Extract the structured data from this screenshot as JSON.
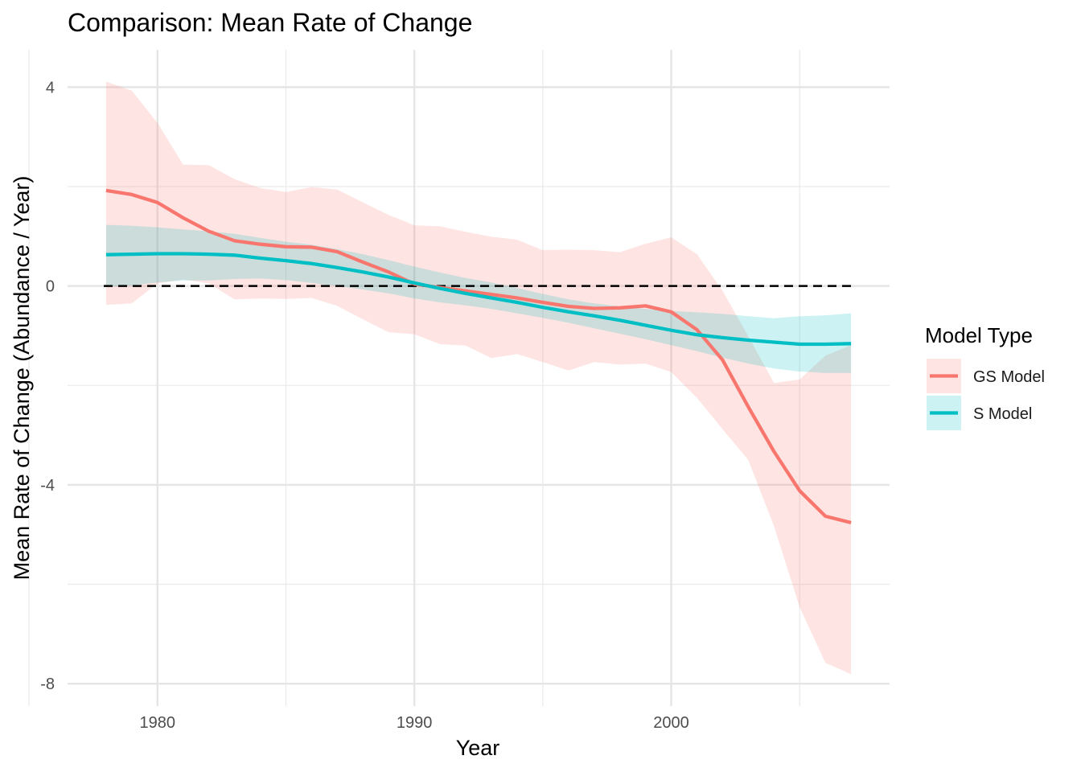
{
  "chart_data": {
    "type": "line",
    "title": "Comparison: Mean Rate of Change",
    "xlabel": "Year",
    "ylabel": "Mean Rate of Change (Abundance / Year)",
    "xlim": [
      1976.5,
      2008.5
    ],
    "ylim": [
      -8.45,
      4.75
    ],
    "x_ticks": [
      1980,
      1990,
      2000
    ],
    "y_ticks": [
      -8,
      -4,
      0,
      4
    ],
    "y_tick_labels": [
      "-8",
      "-4",
      "0",
      "4"
    ],
    "grid": true,
    "reference_line": {
      "y": 0,
      "style": "dashed"
    },
    "legend": {
      "title": "Model Type",
      "position": "right"
    },
    "x": [
      1978,
      1979,
      1980,
      1981,
      1982,
      1983,
      1984,
      1985,
      1986,
      1987,
      1988,
      1989,
      1990,
      1991,
      1992,
      1993,
      1994,
      1995,
      1996,
      1997,
      1998,
      1999,
      2000,
      2001,
      2002,
      2003,
      2004,
      2005,
      2006,
      2007
    ],
    "series": [
      {
        "name": "GS Model",
        "color": "#F8766D",
        "values": [
          1.92,
          1.84,
          1.68,
          1.37,
          1.1,
          0.91,
          0.84,
          0.79,
          0.78,
          0.69,
          0.48,
          0.28,
          0.04,
          -0.03,
          -0.1,
          -0.17,
          -0.24,
          -0.33,
          -0.41,
          -0.45,
          -0.44,
          -0.4,
          -0.52,
          -0.88,
          -1.49,
          -2.43,
          -3.33,
          -4.12,
          -4.63,
          -4.76
        ],
        "lower": [
          -0.38,
          -0.35,
          0.05,
          0.13,
          0.05,
          -0.27,
          -0.25,
          -0.26,
          -0.24,
          -0.4,
          -0.67,
          -0.93,
          -0.97,
          -1.17,
          -1.2,
          -1.45,
          -1.37,
          -1.53,
          -1.7,
          -1.53,
          -1.58,
          -1.56,
          -1.73,
          -2.25,
          -2.88,
          -3.5,
          -4.83,
          -6.46,
          -7.58,
          -7.81
        ],
        "upper": [
          4.11,
          3.93,
          3.28,
          2.44,
          2.43,
          2.15,
          1.97,
          1.89,
          1.99,
          1.94,
          1.68,
          1.43,
          1.22,
          1.2,
          1.09,
          0.99,
          0.93,
          0.72,
          0.73,
          0.72,
          0.68,
          0.85,
          0.98,
          0.64,
          -0.1,
          -1.01,
          -1.95,
          -1.88,
          -1.4,
          -1.19
        ]
      },
      {
        "name": "S Model",
        "color": "#00BFC4",
        "values": [
          0.63,
          0.64,
          0.65,
          0.65,
          0.64,
          0.62,
          0.56,
          0.51,
          0.45,
          0.37,
          0.28,
          0.18,
          0.06,
          -0.05,
          -0.15,
          -0.24,
          -0.33,
          -0.43,
          -0.52,
          -0.6,
          -0.69,
          -0.79,
          -0.89,
          -0.98,
          -1.04,
          -1.09,
          -1.13,
          -1.17,
          -1.17,
          -1.16
        ],
        "lower": [
          -0.02,
          0.01,
          0.07,
          0.11,
          0.11,
          0.14,
          0.15,
          0.12,
          0.06,
          0.0,
          -0.07,
          -0.15,
          -0.25,
          -0.33,
          -0.39,
          -0.46,
          -0.55,
          -0.64,
          -0.74,
          -0.85,
          -0.96,
          -1.07,
          -1.19,
          -1.31,
          -1.44,
          -1.56,
          -1.66,
          -1.72,
          -1.75,
          -1.75
        ],
        "upper": [
          1.23,
          1.21,
          1.18,
          1.14,
          1.1,
          1.05,
          0.97,
          0.89,
          0.83,
          0.74,
          0.64,
          0.52,
          0.39,
          0.27,
          0.16,
          0.07,
          -0.04,
          -0.16,
          -0.27,
          -0.35,
          -0.41,
          -0.46,
          -0.5,
          -0.53,
          -0.56,
          -0.61,
          -0.65,
          -0.61,
          -0.59,
          -0.55
        ]
      }
    ]
  }
}
